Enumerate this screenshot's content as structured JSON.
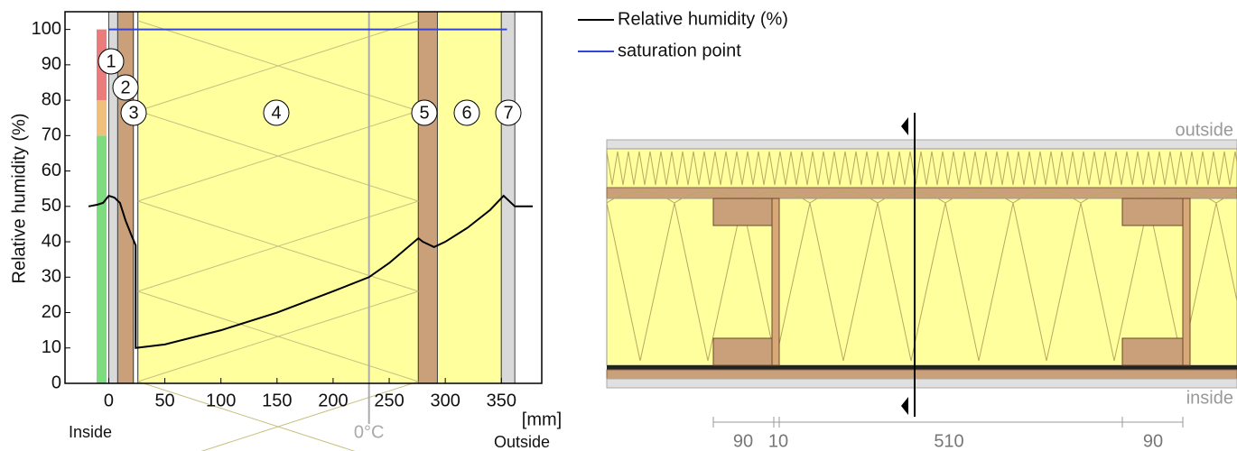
{
  "chart_data": {
    "type": "line",
    "y_label": "Relative humidity (%)",
    "x_label": "[mm]",
    "inside_label": "Inside",
    "outside_label": "Outside",
    "freezing_label": "0°C",
    "freezing_x": 232,
    "xlim": [
      -39,
      386
    ],
    "ylim": [
      0,
      105
    ],
    "xticks": [
      0,
      50,
      100,
      150,
      200,
      250,
      300,
      350
    ],
    "yticks": [
      0,
      10,
      20,
      30,
      40,
      50,
      60,
      70,
      80,
      90,
      100
    ],
    "rh_zones": [
      {
        "from": 0,
        "to": 70,
        "color": "#7ddc7d"
      },
      {
        "from": 70,
        "to": 80,
        "color": "#f0c07a"
      },
      {
        "from": 80,
        "to": 100,
        "color": "#ea7c7c"
      }
    ],
    "layers": [
      {
        "label": "1",
        "range": [
          0,
          8
        ],
        "color": "#d9d9d9"
      },
      {
        "label": "2",
        "range": [
          8,
          22
        ],
        "color": "#c9a07a"
      },
      {
        "label": "3",
        "range": [
          22,
          26
        ],
        "color": "#ffffff"
      },
      {
        "label": "4",
        "range": [
          26,
          276
        ],
        "color": "#ffff9e"
      },
      {
        "label": "5",
        "range": [
          276,
          293
        ],
        "color": "#c9a07a"
      },
      {
        "label": "6",
        "range": [
          293,
          350
        ],
        "color": "#ffff9e"
      },
      {
        "label": "7",
        "range": [
          350,
          362
        ],
        "color": "#d9d9d9"
      }
    ],
    "series": [
      {
        "name": "Relative humidity (%)",
        "color": "#000000",
        "x": [
          -18,
          -10,
          -5,
          0,
          5,
          10,
          15,
          20,
          24,
          24,
          50,
          100,
          150,
          200,
          232,
          250,
          276,
          280,
          290,
          300,
          320,
          340,
          352,
          362,
          378
        ],
        "values": [
          50,
          50.5,
          51,
          53,
          52.5,
          51,
          46,
          42,
          39,
          10,
          11,
          15,
          20,
          26,
          30,
          34,
          41,
          40,
          38.5,
          40,
          44,
          49,
          53,
          50,
          50
        ]
      },
      {
        "name": "saturation point",
        "color": "#3344dd",
        "x": [
          0,
          355
        ],
        "values": [
          100,
          100
        ]
      }
    ]
  },
  "section": {
    "outside_label": "outside",
    "inside_label": "inside",
    "dimensions": [
      "90",
      "10",
      "510",
      "90"
    ]
  }
}
